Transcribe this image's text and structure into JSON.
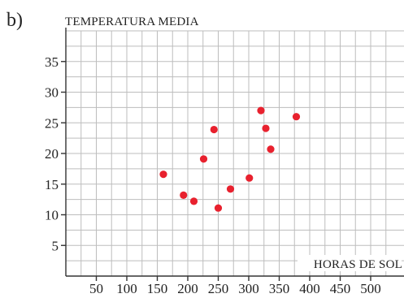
{
  "panel_label": "b)",
  "chart_data": {
    "type": "scatter",
    "title": "",
    "ylabel": "TEMPERATURA MEDIA",
    "xlabel": "HORAS DE SOL",
    "xlim": [
      0,
      525
    ],
    "ylim": [
      0,
      40
    ],
    "x_ticks": [
      50,
      100,
      150,
      200,
      250,
      300,
      350,
      400,
      450,
      500
    ],
    "y_ticks": [
      5,
      10,
      15,
      20,
      25,
      30,
      35
    ],
    "grid": true,
    "marker_color": "#e8212e",
    "points": [
      {
        "x": 160,
        "y": 16.6
      },
      {
        "x": 193,
        "y": 13.2
      },
      {
        "x": 210,
        "y": 12.2
      },
      {
        "x": 226,
        "y": 19.1
      },
      {
        "x": 243,
        "y": 23.9
      },
      {
        "x": 250,
        "y": 11.1
      },
      {
        "x": 270,
        "y": 14.2
      },
      {
        "x": 301,
        "y": 16.0
      },
      {
        "x": 320,
        "y": 27.0
      },
      {
        "x": 328,
        "y": 24.1
      },
      {
        "x": 336,
        "y": 20.7
      },
      {
        "x": 378,
        "y": 26.0
      }
    ]
  }
}
